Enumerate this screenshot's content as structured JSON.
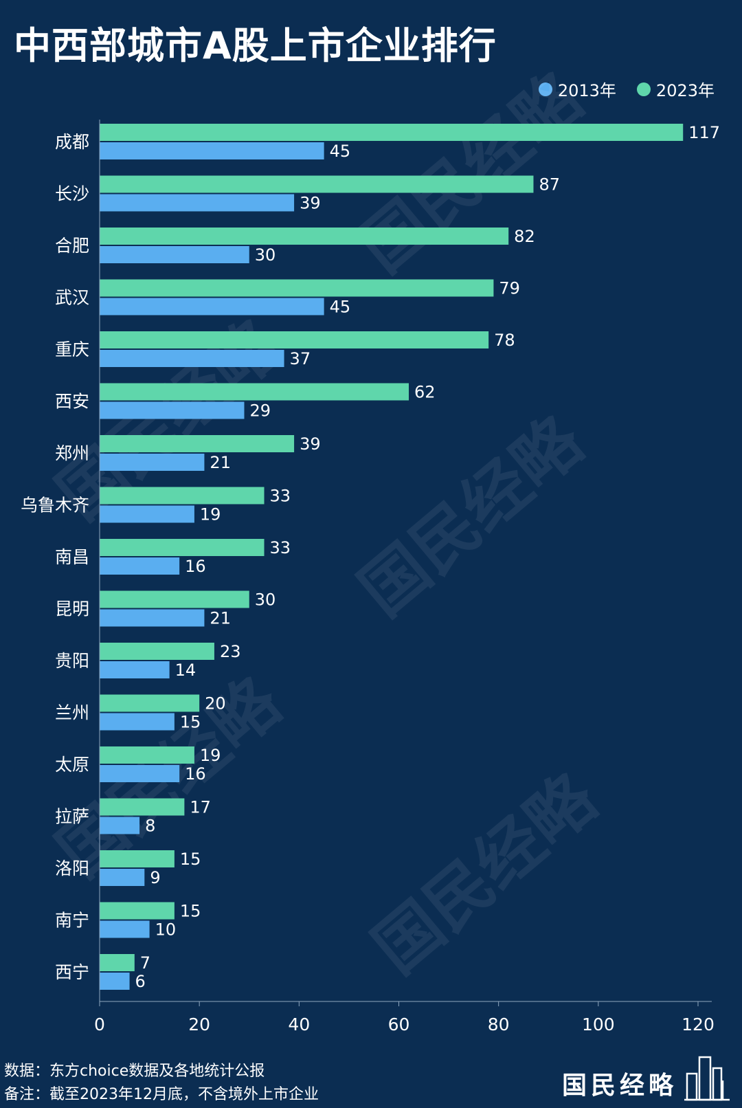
{
  "title": "中西部城市A股上市企业排行",
  "legend": [
    {
      "label": "2013年",
      "color": "#5aaef0"
    },
    {
      "label": "2023年",
      "color": "#5fd6ab"
    }
  ],
  "chart_data": {
    "type": "bar",
    "orientation": "horizontal",
    "categories": [
      "成都",
      "长沙",
      "合肥",
      "武汉",
      "重庆",
      "西安",
      "郑州",
      "乌鲁木齐",
      "南昌",
      "昆明",
      "贵阳",
      "兰州",
      "太原",
      "拉萨",
      "洛阳",
      "南宁",
      "西宁"
    ],
    "series": [
      {
        "name": "2023年",
        "color": "#5fd6ab",
        "values": [
          117,
          87,
          82,
          79,
          78,
          62,
          39,
          33,
          33,
          30,
          23,
          20,
          19,
          17,
          15,
          15,
          7
        ]
      },
      {
        "name": "2013年",
        "color": "#5aaef0",
        "values": [
          45,
          39,
          30,
          45,
          37,
          29,
          21,
          19,
          16,
          21,
          14,
          15,
          16,
          8,
          9,
          10,
          6
        ]
      }
    ],
    "xlim": [
      0,
      120
    ],
    "xticks": [
      0,
      20,
      40,
      60,
      80,
      100,
      120
    ],
    "grid": false,
    "legend_position": "top-right"
  },
  "watermark": "国民经略",
  "footer": {
    "source": "数据：东方choice数据及各地统计公报",
    "note": "备注：截至2023年12月底，不含境外上市企业"
  },
  "brand": "国民经略"
}
